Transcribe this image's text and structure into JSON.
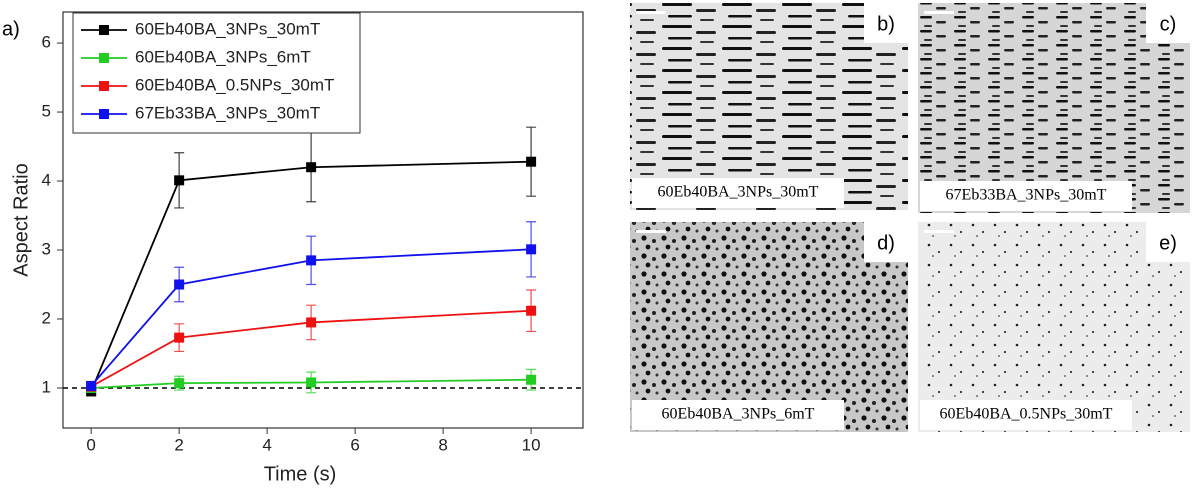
{
  "chart_data": {
    "type": "line",
    "panel_label": "a)",
    "xlabel": "Time (s)",
    "ylabel": "Aspect Ratio",
    "x": [
      0,
      2,
      5,
      10
    ],
    "xlim": [
      -0.64,
      11.18
    ],
    "xticks": [
      0,
      2,
      4,
      6,
      8,
      10
    ],
    "ylim": [
      0.42,
      6.45
    ],
    "yticks": [
      1,
      2,
      3,
      4,
      5,
      6
    ],
    "reference_line": 1,
    "legend": "upper left",
    "series": [
      {
        "name": "60Eb40BA_3NPs_30mT",
        "color": "#000000",
        "values": [
          0.95,
          4.01,
          4.2,
          4.28
        ],
        "errors": [
          0.05,
          0.4,
          0.5,
          0.5
        ]
      },
      {
        "name": "60Eb40BA_3NPs_6mT",
        "color": "#22cc22",
        "values": [
          1.0,
          1.07,
          1.08,
          1.12
        ],
        "errors": [
          0.05,
          0.1,
          0.15,
          0.15
        ]
      },
      {
        "name": "60Eb40BA_0.5NPs_30mT",
        "color": "#ee1111",
        "values": [
          1.02,
          1.73,
          1.95,
          2.12
        ],
        "errors": [
          0.05,
          0.2,
          0.25,
          0.3
        ]
      },
      {
        "name": "67Eb33BA_3NPs_30mT",
        "color": "#1111ee",
        "values": [
          1.03,
          2.5,
          2.85,
          3.01
        ],
        "errors": [
          0.05,
          0.25,
          0.35,
          0.4
        ]
      }
    ]
  },
  "panels": [
    {
      "label": "b)",
      "caption": "60Eb40BA_3NPs_30mT"
    },
    {
      "label": "c)",
      "caption": "67Eb33BA_3NPs_30mT"
    },
    {
      "label": "d)",
      "caption": "60Eb40BA_3NPs_6mT"
    },
    {
      "label": "e)",
      "caption": "60Eb40BA_0.5NPs_30mT"
    }
  ]
}
